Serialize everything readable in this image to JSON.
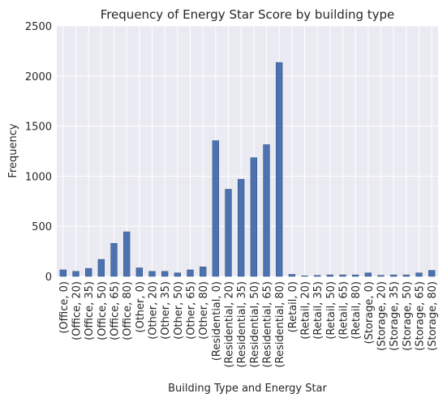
{
  "chart_data": {
    "type": "bar",
    "title": "Frequency of Energy Star Score by building type",
    "xlabel": "Building Type and Energy Star",
    "ylabel": "Frequency",
    "ylim": [
      0,
      2500
    ],
    "yticks": [
      0,
      500,
      1000,
      1500,
      2000,
      2500
    ],
    "grid": true,
    "legend": "none",
    "colors": {
      "bar": "#4c72b0",
      "bar_edge": "#2f4f7f",
      "plot_bg": "#eaeaf2",
      "grid": "#ffffff"
    },
    "categories": [
      "(Office, 0)",
      "(Office, 20)",
      "(Office, 35)",
      "(Office, 50)",
      "(Office, 65)",
      "(Office, 80)",
      "(Other, 0)",
      "(Other, 20)",
      "(Other, 35)",
      "(Other, 50)",
      "(Other, 65)",
      "(Other, 80)",
      "(Residential, 0)",
      "(Residential, 20)",
      "(Residential, 35)",
      "(Residential, 50)",
      "(Residential, 65)",
      "(Residential, 80)",
      "(Retail, 0)",
      "(Retail, 20)",
      "(Retail, 35)",
      "(Retail, 50)",
      "(Retail, 65)",
      "(Retail, 80)",
      "(Storage, 0)",
      "(Storage, 20)",
      "(Storage, 35)",
      "(Storage, 50)",
      "(Storage, 65)",
      "(Storage, 80)"
    ],
    "values": [
      65,
      50,
      80,
      170,
      330,
      445,
      85,
      50,
      50,
      35,
      65,
      95,
      1355,
      870,
      970,
      1185,
      1315,
      2135,
      20,
      5,
      10,
      15,
      15,
      15,
      35,
      10,
      15,
      15,
      35,
      60
    ]
  }
}
